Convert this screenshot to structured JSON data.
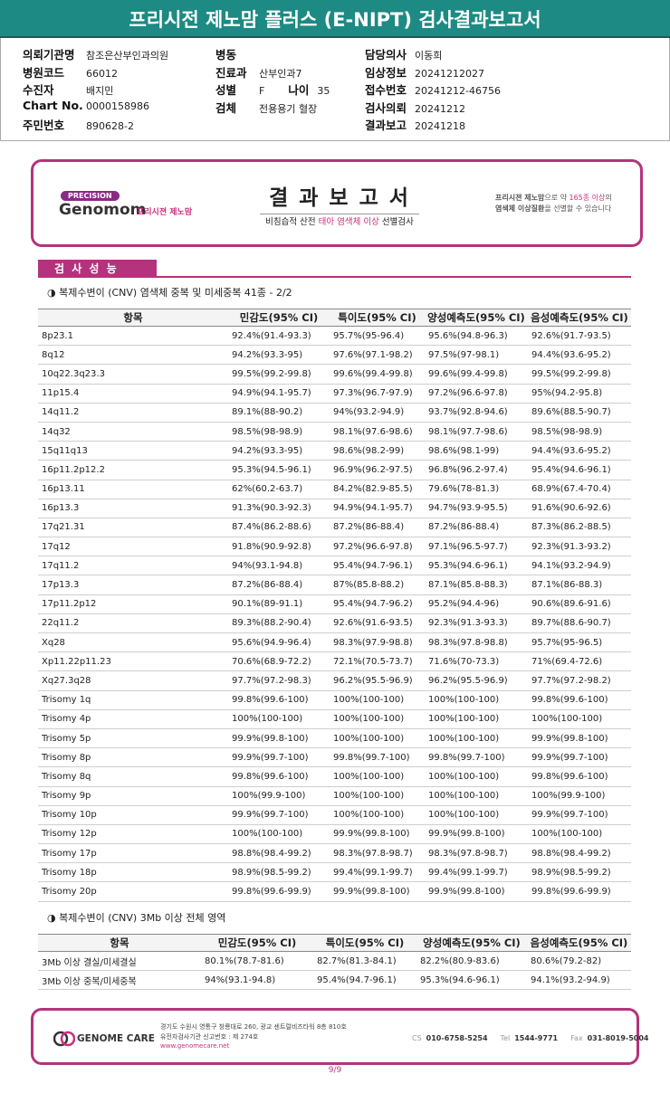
{
  "header": {
    "title": "프리시전 제노맘 플러스 (E-NIPT) 검사결과보고서"
  },
  "info": {
    "columns": [
      [
        {
          "label": "의뢰기관명",
          "value": "참조은산부인과의원"
        },
        {
          "label": "병원코드",
          "value": "66012"
        },
        {
          "label": "수진자",
          "value": "배지민"
        },
        {
          "label": "Chart No.",
          "value": "0000158986"
        },
        {
          "label": "주민번호",
          "value": "890628-2"
        }
      ],
      [
        {
          "label": "병동"
        },
        {
          "label": "진료과",
          "value": "산부인과7"
        },
        {
          "label": "성별",
          "value": "F"
        },
        {
          "label": "검체",
          "value": "전용용기 혈장"
        }
      ],
      [
        {
          "label": "담당의사",
          "value": "이동희"
        },
        {
          "label": "임상정보",
          "value": "20241212027"
        },
        {
          "label": "접수번호",
          "value": "20241212-46756"
        },
        {
          "label": "검사의뢰",
          "value": "20241212"
        },
        {
          "label": "결과보고",
          "value": "20241218"
        }
      ]
    ],
    "age": {
      "label": "나이",
      "value": "35"
    }
  },
  "report": {
    "badge": "PRECISION",
    "brand": "Genomom",
    "brand_ko": "프리시젼 제노맘",
    "title": "결 과 보 고 서",
    "subtitle": [
      "비침습적 산전 ",
      "태아 염색체 이상",
      " 선별검사"
    ],
    "note": [
      [
        "프리시젼 제노맘",
        "으로 약 ",
        "165종 이상",
        "의"
      ],
      [
        "염색체 이상질환",
        "을 선별할 수 있습니다"
      ]
    ]
  },
  "section": {
    "title": "검 사 성 능"
  },
  "tables": [
    {
      "caption": "◑ 복제수변이 (CNV) 염색체 중복 및 미세중복 41종 - 2/2",
      "headers": [
        "항목",
        "민감도(95% CI)",
        "특이도(95% CI)",
        "양성예측도(95% CI)",
        "음성예측도(95% CI)"
      ],
      "rows": [
        [
          "8p23.1",
          "92.4%(91.4-93.3)",
          "95.7%(95-96.4)",
          "95.6%(94.8-96.3)",
          "92.6%(91.7-93.5)"
        ],
        [
          "8q12",
          "94.2%(93.3-95)",
          "97.6%(97.1-98.2)",
          "97.5%(97-98.1)",
          "94.4%(93.6-95.2)"
        ],
        [
          "10q22.3q23.3",
          "99.5%(99.2-99.8)",
          "99.6%(99.4-99.8)",
          "99.6%(99.4-99.8)",
          "99.5%(99.2-99.8)"
        ],
        [
          "11p15.4",
          "94.9%(94.1-95.7)",
          "97.3%(96.7-97.9)",
          "97.2%(96.6-97.8)",
          "95%(94.2-95.8)"
        ],
        [
          "14q11.2",
          "89.1%(88-90.2)",
          "94%(93.2-94.9)",
          "93.7%(92.8-94.6)",
          "89.6%(88.5-90.7)"
        ],
        [
          "14q32",
          "98.5%(98-98.9)",
          "98.1%(97.6-98.6)",
          "98.1%(97.7-98.6)",
          "98.5%(98-98.9)"
        ],
        [
          "15q11q13",
          "94.2%(93.3-95)",
          "98.6%(98.2-99)",
          "98.6%(98.1-99)",
          "94.4%(93.6-95.2)"
        ],
        [
          "16p11.2p12.2",
          "95.3%(94.5-96.1)",
          "96.9%(96.2-97.5)",
          "96.8%(96.2-97.4)",
          "95.4%(94.6-96.1)"
        ],
        [
          "16p13.11",
          "62%(60.2-63.7)",
          "84.2%(82.9-85.5)",
          "79.6%(78-81.3)",
          "68.9%(67.4-70.4)"
        ],
        [
          "16p13.3",
          "91.3%(90.3-92.3)",
          "94.9%(94.1-95.7)",
          "94.7%(93.9-95.5)",
          "91.6%(90.6-92.6)"
        ],
        [
          "17q21.31",
          "87.4%(86.2-88.6)",
          "87.2%(86-88.4)",
          "87.2%(86-88.4)",
          "87.3%(86.2-88.5)"
        ],
        [
          "17q12",
          "91.8%(90.9-92.8)",
          "97.2%(96.6-97.8)",
          "97.1%(96.5-97.7)",
          "92.3%(91.3-93.2)"
        ],
        [
          "17q11.2",
          "94%(93.1-94.8)",
          "95.4%(94.7-96.1)",
          "95.3%(94.6-96.1)",
          "94.1%(93.2-94.9)"
        ],
        [
          "17p13.3",
          "87.2%(86-88.4)",
          "87%(85.8-88.2)",
          "87.1%(85.8-88.3)",
          "87.1%(86-88.3)"
        ],
        [
          "17p11.2p12",
          "90.1%(89-91.1)",
          "95.4%(94.7-96.2)",
          "95.2%(94.4-96)",
          "90.6%(89.6-91.6)"
        ],
        [
          "22q11.2",
          "89.3%(88.2-90.4)",
          "92.6%(91.6-93.5)",
          "92.3%(91.3-93.3)",
          "89.7%(88.6-90.7)"
        ],
        [
          "Xq28",
          "95.6%(94.9-96.4)",
          "98.3%(97.9-98.8)",
          "98.3%(97.8-98.8)",
          "95.7%(95-96.5)"
        ],
        [
          "Xp11.22p11.23",
          "70.6%(68.9-72.2)",
          "72.1%(70.5-73.7)",
          "71.6%(70-73.3)",
          "71%(69.4-72.6)"
        ],
        [
          "Xq27.3q28",
          "97.7%(97.2-98.3)",
          "96.2%(95.5-96.9)",
          "96.2%(95.5-96.9)",
          "97.7%(97.2-98.2)"
        ],
        [
          "Trisomy 1q",
          "99.8%(99.6-100)",
          "100%(100-100)",
          "100%(100-100)",
          "99.8%(99.6-100)"
        ],
        [
          "Trisomy 4p",
          "100%(100-100)",
          "100%(100-100)",
          "100%(100-100)",
          "100%(100-100)"
        ],
        [
          "Trisomy 5p",
          "99.9%(99.8-100)",
          "100%(100-100)",
          "100%(100-100)",
          "99.9%(99.8-100)"
        ],
        [
          "Trisomy 8p",
          "99.9%(99.7-100)",
          "99.8%(99.7-100)",
          "99.8%(99.7-100)",
          "99.9%(99.7-100)"
        ],
        [
          "Trisomy 8q",
          "99.8%(99.6-100)",
          "100%(100-100)",
          "100%(100-100)",
          "99.8%(99.6-100)"
        ],
        [
          "Trisomy 9p",
          "100%(99.9-100)",
          "100%(100-100)",
          "100%(100-100)",
          "100%(99.9-100)"
        ],
        [
          "Trisomy 10p",
          "99.9%(99.7-100)",
          "100%(100-100)",
          "100%(100-100)",
          "99.9%(99.7-100)"
        ],
        [
          "Trisomy 12p",
          "100%(100-100)",
          "99.9%(99.8-100)",
          "99.9%(99.8-100)",
          "100%(100-100)"
        ],
        [
          "Trisomy 17p",
          "98.8%(98.4-99.2)",
          "98.3%(97.8-98.7)",
          "98.3%(97.8-98.7)",
          "98.8%(98.4-99.2)"
        ],
        [
          "Trisomy 18p",
          "98.9%(98.5-99.2)",
          "99.4%(99.1-99.7)",
          "99.4%(99.1-99.7)",
          "98.9%(98.5-99.2)"
        ],
        [
          "Trisomy 20p",
          "99.8%(99.6-99.9)",
          "99.9%(99.8-100)",
          "99.9%(99.8-100)",
          "99.8%(99.6-99.9)"
        ]
      ]
    },
    {
      "caption": "◑ 복제수변이 (CNV) 3Mb 이상 전체 영역",
      "headers": [
        "항목",
        "민감도(95% CI)",
        "특이도(95% CI)",
        "양성예측도(95% CI)",
        "음성예측도(95% CI)"
      ],
      "rows": [
        [
          "3Mb 이상 결실/미세결실",
          "80.1%(78.7-81.6)",
          "82.7%(81.3-84.1)",
          "82.2%(80.9-83.6)",
          "80.6%(79.2-82)"
        ],
        [
          "3Mb 이상 중복/미세중복",
          "94%(93.1-94.8)",
          "95.4%(94.7-96.1)",
          "95.3%(94.6-96.1)",
          "94.1%(93.2-94.9)"
        ]
      ]
    }
  ],
  "footer": {
    "company": "GENOME CARE",
    "address": [
      "경기도 수원시 영통구 창룡대로 260, 광교 센트럴비즈타워 8층 810호",
      "유전자검사기관 신고번호 : 제 274호"
    ],
    "url": "www.genomecare.net",
    "contacts": [
      {
        "label": "CS",
        "value": "010-6758-5254"
      },
      {
        "label": "Tel",
        "value": "1544-9771"
      },
      {
        "label": "Fax",
        "value": "031-8019-5004"
      }
    ]
  },
  "page": "9/9"
}
